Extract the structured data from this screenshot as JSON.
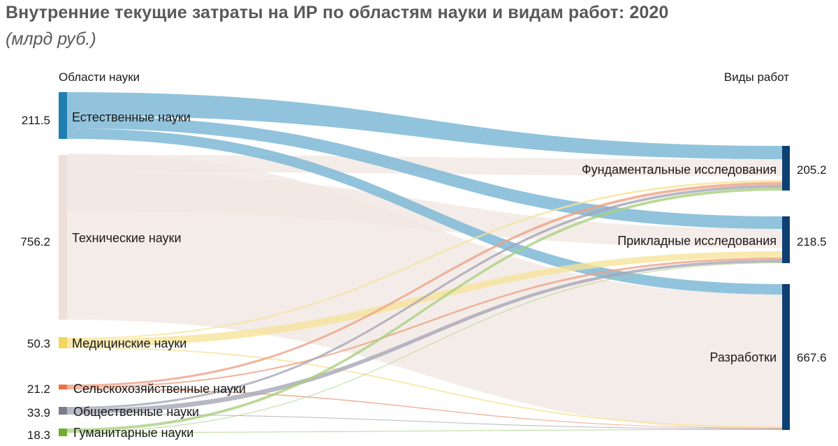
{
  "header": {
    "title": "Внутренние текущие затраты на ИР по областям науки и видам работ: 2020",
    "subtitle": "(млрд руб.)"
  },
  "axes": {
    "left_heading": "Области науки",
    "right_heading": "Виды работ"
  },
  "sources": [
    {
      "id": "nat",
      "label": "Естественные науки",
      "value": "211.5",
      "color": "#1f7fb0",
      "flow_color": "#7fb8d6"
    },
    {
      "id": "tech",
      "label": "Технические науки",
      "value": "756.2",
      "color": "#ede0da",
      "flow_color": "#f1e7e2"
    },
    {
      "id": "med",
      "label": "Медицинские науки",
      "value": "50.3",
      "color": "#f2d65e",
      "flow_color": "#f6e49a"
    },
    {
      "id": "agr",
      "label": "Сельскохозяйственные науки",
      "value": "21.2",
      "color": "#e8734a",
      "flow_color": "#eda184"
    },
    {
      "id": "soc",
      "label": "Общественные науки",
      "value": "33.9",
      "color": "#7d7d8a",
      "flow_color": "#a6a6b6"
    },
    {
      "id": "hum",
      "label": "Гуманитарные науки",
      "value": "18.3",
      "color": "#6fae2e",
      "flow_color": "#a8d17e"
    }
  ],
  "targets": [
    {
      "id": "fund",
      "label": "Фундаментальные исследования",
      "value": "205.2",
      "color": "#0e3f73"
    },
    {
      "id": "appl",
      "label": "Прикладные исследования",
      "value": "218.5",
      "color": "#0e3f73"
    },
    {
      "id": "dev",
      "label": "Разработки",
      "value": "667.6",
      "color": "#0e3f73"
    }
  ]
}
